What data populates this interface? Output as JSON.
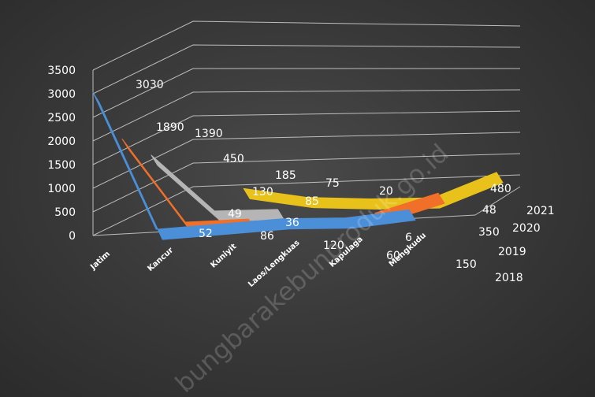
{
  "chart_data": {
    "type": "line",
    "title": "",
    "xlabel": "",
    "ylabel": "",
    "ylim": [
      0,
      3500
    ],
    "y_ticks": [
      "0",
      "500",
      "1000",
      "1500",
      "2000",
      "2500",
      "3000",
      "3500"
    ],
    "categories": [
      "Jatim",
      "Kancur",
      "Kuniyit",
      "Laos/Lengkuas",
      "Kapulaga",
      "Mengkudu"
    ],
    "series_axis_labels": [
      "2018",
      "2019",
      "2020",
      "2021"
    ],
    "series": [
      {
        "name": "2018",
        "color": "#4a8fd8",
        "values": [
          3030,
          52,
          86,
          120,
          60,
          150
        ]
      },
      {
        "name": "2019",
        "color": "#f0702a",
        "values": [
          1890,
          49,
          36,
          null,
          6,
          350
        ]
      },
      {
        "name": "2020",
        "color": "#b5b5b5",
        "values": [
          1390,
          130,
          85,
          null,
          null,
          48
        ]
      },
      {
        "name": "2021",
        "color": "#e8c21a",
        "values": [
          null,
          450,
          185,
          75,
          20,
          480
        ]
      }
    ],
    "data_labels": [
      {
        "series": 0,
        "text": "3030"
      },
      {
        "series": 0,
        "text": "52"
      },
      {
        "series": 0,
        "text": "86"
      },
      {
        "series": 0,
        "text": "120"
      },
      {
        "series": 0,
        "text": "60"
      },
      {
        "series": 0,
        "text": "150"
      },
      {
        "series": 1,
        "text": "1890"
      },
      {
        "series": 1,
        "text": "49"
      },
      {
        "series": 1,
        "text": "36"
      },
      {
        "series": 1,
        "text": "6"
      },
      {
        "series": 1,
        "text": "350"
      },
      {
        "series": 2,
        "text": "1390"
      },
      {
        "series": 2,
        "text": "130"
      },
      {
        "series": 2,
        "text": "85"
      },
      {
        "series": 2,
        "text": "48"
      },
      {
        "series": 3,
        "text": "450"
      },
      {
        "series": 3,
        "text": "185"
      },
      {
        "series": 3,
        "text": "75"
      },
      {
        "series": 3,
        "text": "20"
      },
      {
        "series": 3,
        "text": "480"
      }
    ],
    "grid": true,
    "legend": "none"
  },
  "watermark": "bungbarakebunproduk.go.id"
}
